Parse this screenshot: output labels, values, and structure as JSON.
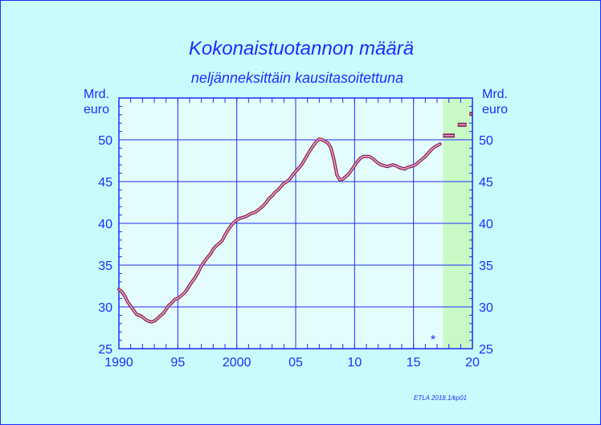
{
  "chart_data": {
    "type": "line",
    "title": "Kokonaistuotannon  määrä",
    "subtitle": "neljänneksittäin  kausitasoitettuna",
    "ylabel_left": [
      "Mrd.",
      "euro"
    ],
    "ylabel_right": [
      "Mrd.",
      "euro"
    ],
    "source": "ETLA 2018.1/kp01",
    "forecast_marker": "*",
    "xlim": [
      1990,
      2020
    ],
    "ylim": [
      25,
      55
    ],
    "x_ticks": [
      1990,
      1995,
      2000,
      2005,
      2010,
      2015,
      2020
    ],
    "x_tick_labels": [
      "1990",
      "95",
      "2000",
      "05",
      "10",
      "15",
      "20"
    ],
    "y_ticks": [
      25,
      30,
      35,
      40,
      45,
      50
    ],
    "y_tick_labels": [
      "25",
      "30",
      "35",
      "40",
      "45",
      "50"
    ],
    "grid": true,
    "forecast_region": [
      2017.5,
      2020
    ],
    "colors": {
      "line": "#7a2a52",
      "line_inner": "#ff9ad0",
      "grid": "#1f2bff",
      "plot_bg": "#e4fdfc",
      "forecast_bg": "#c9fac6",
      "text": "#1f2bff"
    },
    "series": [
      {
        "values": [
          [
            1990.0,
            32.1
          ],
          [
            1990.25,
            31.8
          ],
          [
            1990.5,
            31.3
          ],
          [
            1990.75,
            30.6
          ],
          [
            1991.0,
            30.1
          ],
          [
            1991.25,
            29.6
          ],
          [
            1991.5,
            29.1
          ],
          [
            1991.75,
            29.0
          ],
          [
            1992.0,
            28.8
          ],
          [
            1992.25,
            28.5
          ],
          [
            1992.5,
            28.3
          ],
          [
            1992.75,
            28.2
          ],
          [
            1993.0,
            28.3
          ],
          [
            1993.25,
            28.6
          ],
          [
            1993.5,
            28.9
          ],
          [
            1993.75,
            29.2
          ],
          [
            1994.0,
            29.7
          ],
          [
            1994.25,
            30.2
          ],
          [
            1994.5,
            30.5
          ],
          [
            1994.75,
            30.9
          ],
          [
            1995.0,
            31.0
          ],
          [
            1995.25,
            31.3
          ],
          [
            1995.5,
            31.6
          ],
          [
            1995.75,
            32.0
          ],
          [
            1996.0,
            32.6
          ],
          [
            1996.25,
            33.1
          ],
          [
            1996.5,
            33.6
          ],
          [
            1996.75,
            34.2
          ],
          [
            1997.0,
            34.9
          ],
          [
            1997.25,
            35.4
          ],
          [
            1997.5,
            35.9
          ],
          [
            1997.75,
            36.3
          ],
          [
            1998.0,
            36.9
          ],
          [
            1998.25,
            37.3
          ],
          [
            1998.5,
            37.6
          ],
          [
            1998.75,
            37.9
          ],
          [
            1999.0,
            38.6
          ],
          [
            1999.25,
            39.2
          ],
          [
            1999.5,
            39.7
          ],
          [
            1999.75,
            40.1
          ],
          [
            2000.0,
            40.4
          ],
          [
            2000.25,
            40.6
          ],
          [
            2000.5,
            40.7
          ],
          [
            2000.75,
            40.8
          ],
          [
            2001.0,
            41.0
          ],
          [
            2001.25,
            41.2
          ],
          [
            2001.5,
            41.3
          ],
          [
            2001.75,
            41.5
          ],
          [
            2002.0,
            41.8
          ],
          [
            2002.25,
            42.1
          ],
          [
            2002.5,
            42.5
          ],
          [
            2002.75,
            43.0
          ],
          [
            2003.0,
            43.3
          ],
          [
            2003.25,
            43.7
          ],
          [
            2003.5,
            44.0
          ],
          [
            2003.75,
            44.4
          ],
          [
            2004.0,
            44.8
          ],
          [
            2004.25,
            45.0
          ],
          [
            2004.5,
            45.3
          ],
          [
            2004.75,
            45.8
          ],
          [
            2005.0,
            46.2
          ],
          [
            2005.25,
            46.6
          ],
          [
            2005.5,
            47.0
          ],
          [
            2005.75,
            47.6
          ],
          [
            2006.0,
            48.2
          ],
          [
            2006.25,
            48.8
          ],
          [
            2006.5,
            49.3
          ],
          [
            2006.75,
            49.8
          ],
          [
            2007.0,
            50.1
          ],
          [
            2007.25,
            50.0
          ],
          [
            2007.5,
            49.8
          ],
          [
            2007.75,
            49.6
          ],
          [
            2008.0,
            49.0
          ],
          [
            2008.25,
            47.6
          ],
          [
            2008.5,
            45.8
          ],
          [
            2008.75,
            45.2
          ],
          [
            2009.0,
            45.3
          ],
          [
            2009.25,
            45.6
          ],
          [
            2009.5,
            45.9
          ],
          [
            2009.75,
            46.4
          ],
          [
            2010.0,
            46.9
          ],
          [
            2010.25,
            47.4
          ],
          [
            2010.5,
            47.8
          ],
          [
            2010.75,
            48.0
          ],
          [
            2011.0,
            48.0
          ],
          [
            2011.25,
            48.0
          ],
          [
            2011.5,
            47.8
          ],
          [
            2011.75,
            47.5
          ],
          [
            2012.0,
            47.2
          ],
          [
            2012.25,
            47.0
          ],
          [
            2012.5,
            46.9
          ],
          [
            2012.75,
            46.8
          ],
          [
            2013.0,
            46.9
          ],
          [
            2013.25,
            47.0
          ],
          [
            2013.5,
            46.9
          ],
          [
            2013.75,
            46.7
          ],
          [
            2014.0,
            46.6
          ],
          [
            2014.25,
            46.5
          ],
          [
            2014.5,
            46.7
          ],
          [
            2014.75,
            46.8
          ],
          [
            2015.0,
            46.9
          ],
          [
            2015.25,
            47.1
          ],
          [
            2015.5,
            47.4
          ],
          [
            2015.75,
            47.7
          ],
          [
            2016.0,
            48.0
          ],
          [
            2016.25,
            48.4
          ],
          [
            2016.5,
            48.8
          ],
          [
            2016.75,
            49.1
          ],
          [
            2017.0,
            49.3
          ],
          [
            2017.25,
            49.5
          ]
        ]
      },
      {
        "forecast_steps": [
          {
            "x": [
              2017.5,
              2018.5
            ],
            "y": 50.5
          },
          {
            "x": [
              2018.75,
              2019.5
            ],
            "y": 51.8
          },
          {
            "x": [
              2019.75,
              2020.0
            ],
            "y": 53.1
          }
        ]
      }
    ]
  }
}
